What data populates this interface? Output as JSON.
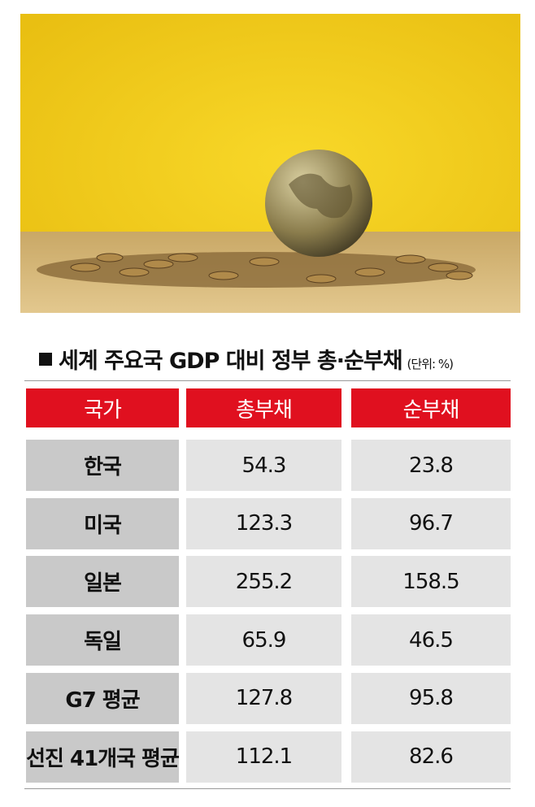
{
  "title": "세계 주요국 GDP 대비 정부 총·순부채",
  "unit": "(단위: %)",
  "table": {
    "header": [
      "국가",
      "총부채",
      "순부채"
    ],
    "rows": [
      [
        "한국",
        54.3,
        23.8
      ],
      [
        "미국",
        123.3,
        96.7
      ],
      [
        "일본",
        255.2,
        158.5
      ],
      [
        "독일",
        65.9,
        46.5
      ],
      [
        "G7 평균",
        127.8,
        95.8
      ],
      [
        "선진 41개국 평균",
        112.1,
        82.6
      ]
    ]
  }
}
